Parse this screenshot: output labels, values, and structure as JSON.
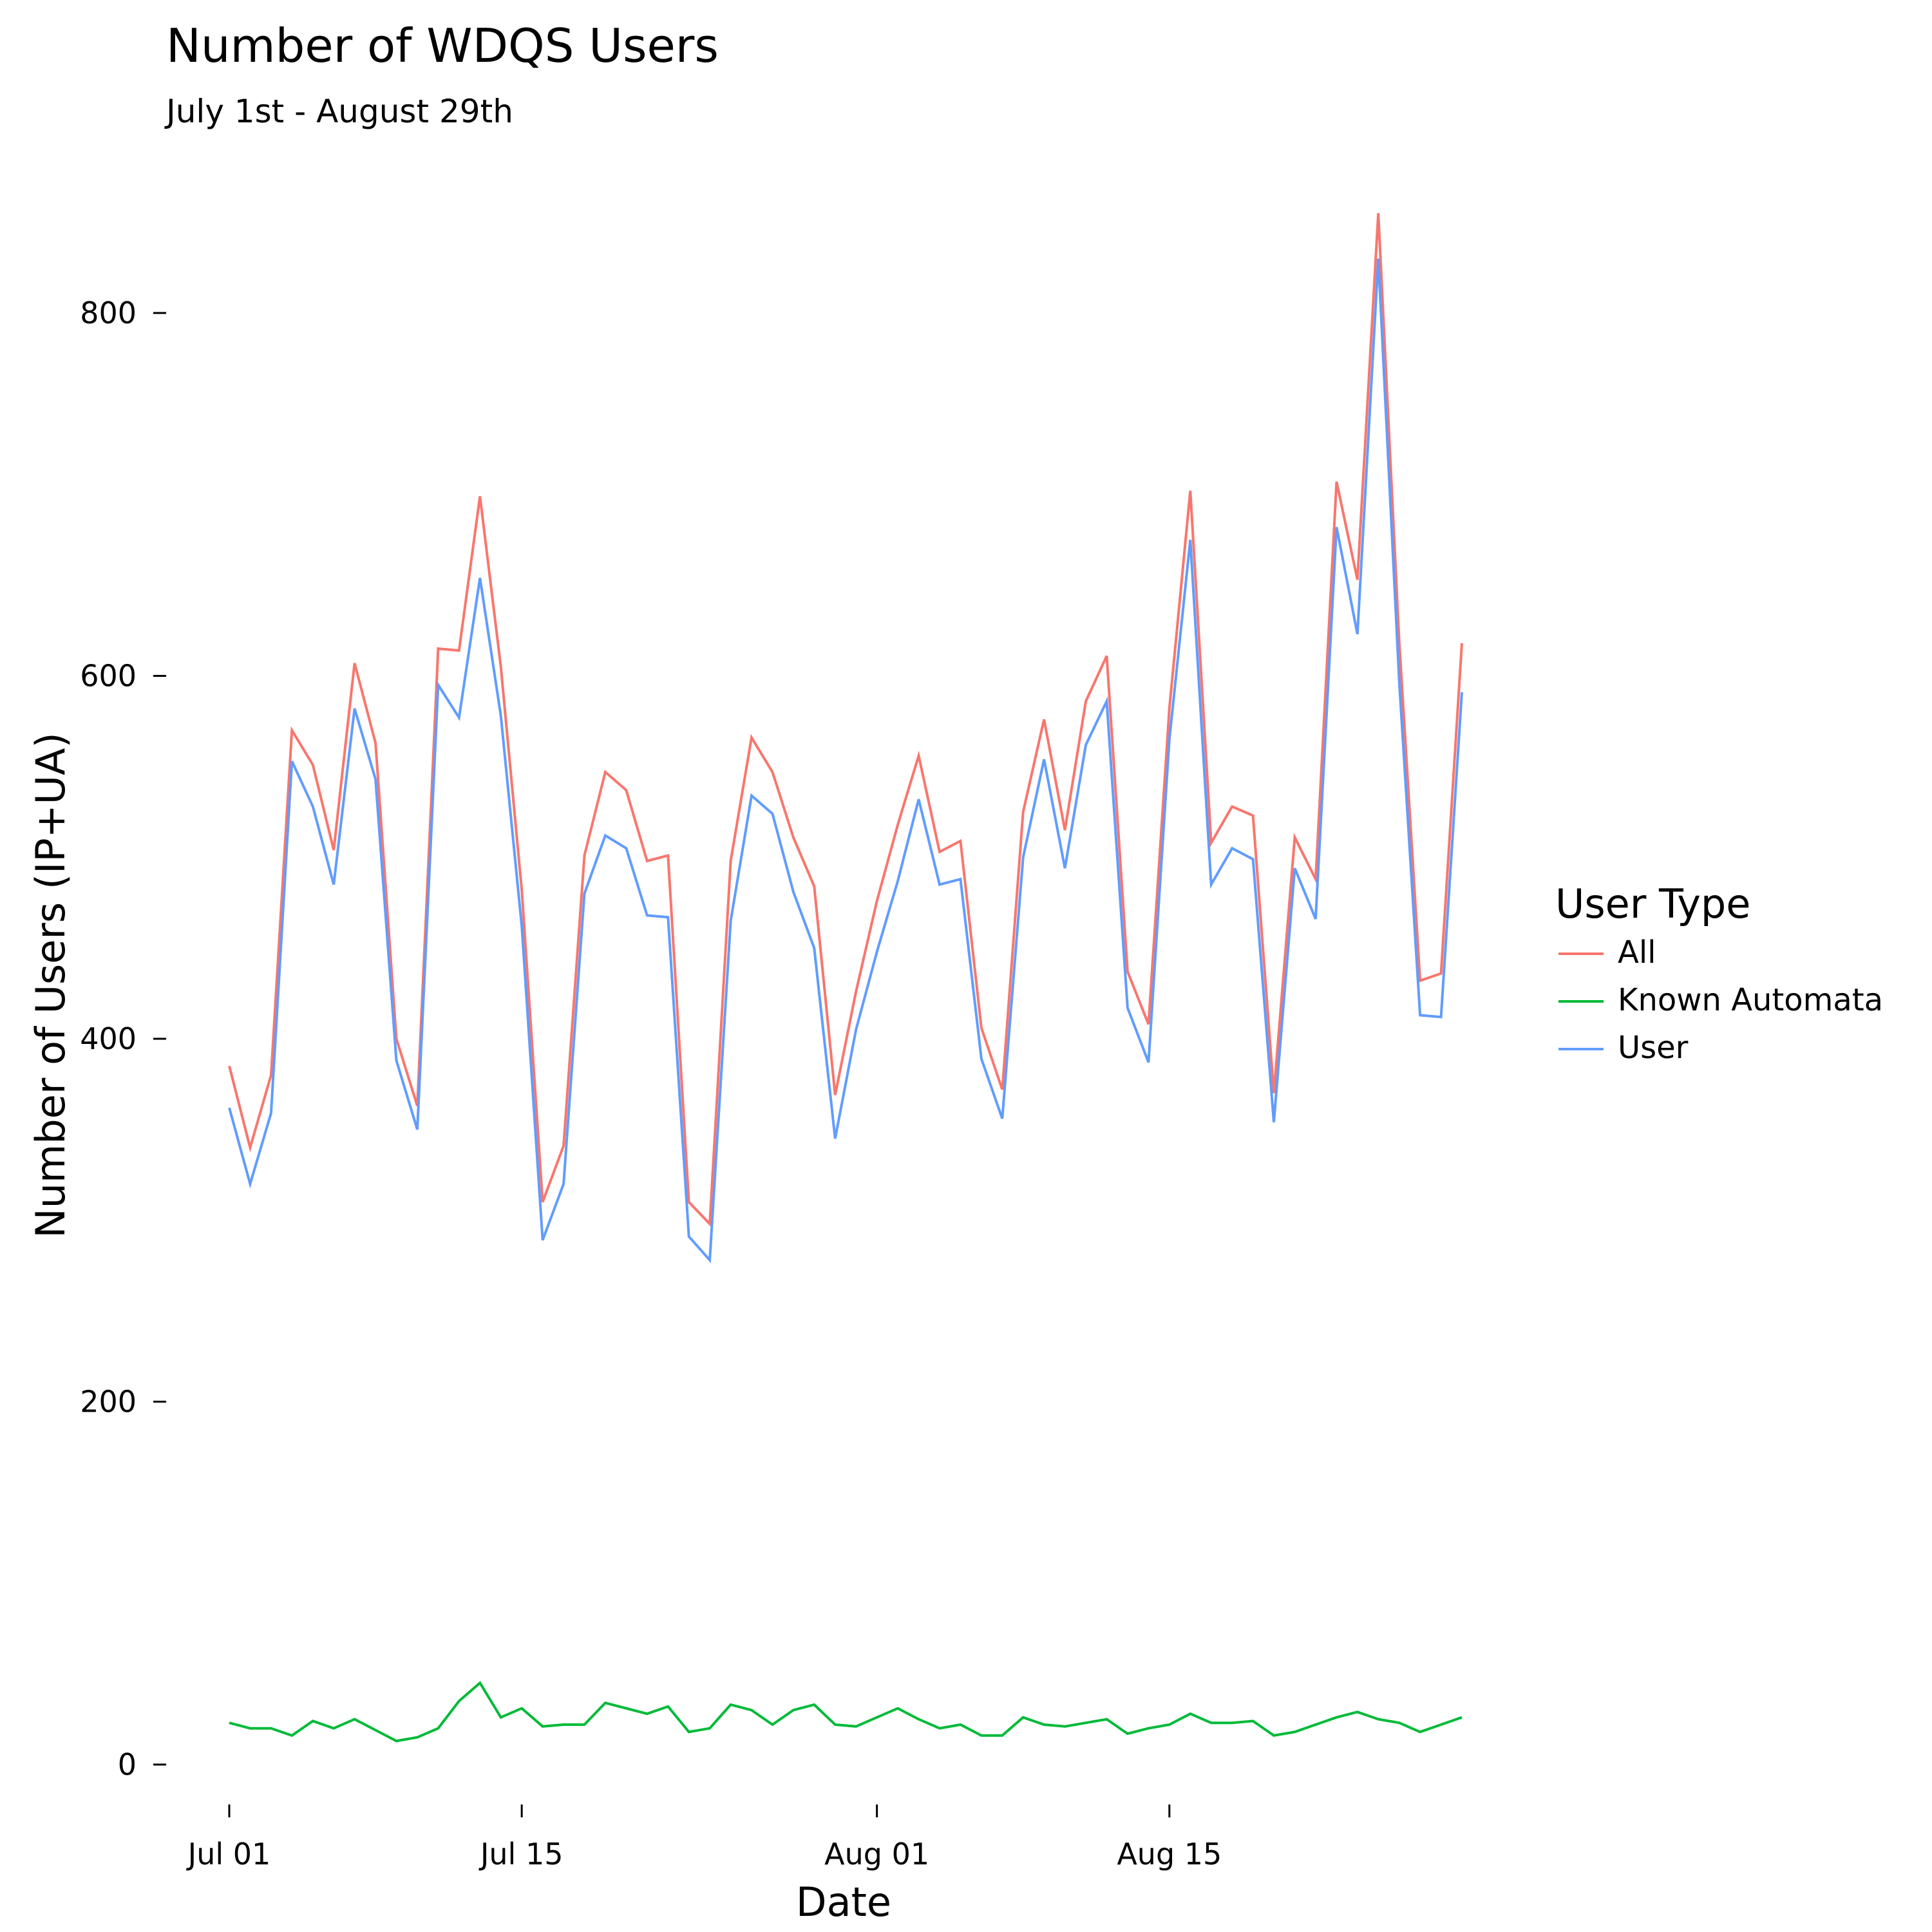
{
  "chart_data": {
    "type": "line",
    "title": "Number of WDQS Users",
    "subtitle": "July 1st - August 29th",
    "xlabel": "Date",
    "ylabel": "Number of Users (IP+UA)",
    "x_start": "2016-07-01",
    "x_end": "2016-08-29",
    "x_ticks": [
      {
        "date": "2016-07-01",
        "label": "Jul 01"
      },
      {
        "date": "2016-07-15",
        "label": "Jul 15"
      },
      {
        "date": "2016-08-01",
        "label": "Aug 01"
      },
      {
        "date": "2016-08-15",
        "label": "Aug 15"
      }
    ],
    "y_ticks": [
      0,
      200,
      400,
      600,
      800
    ],
    "ylim": [
      -30,
      860
    ],
    "grid": false,
    "legend": {
      "title": "User Type",
      "position": "right"
    },
    "series": [
      {
        "name": "All",
        "color": "#F8766D",
        "values": [
          385,
          340,
          380,
          570,
          551,
          504,
          607,
          563,
          400,
          363,
          615,
          614,
          699,
          605,
          482,
          310,
          341,
          501,
          547,
          537,
          498,
          501,
          310,
          298,
          498,
          566,
          547,
          511,
          484,
          369,
          426,
          476,
          518,
          556,
          503,
          509,
          406,
          372,
          525,
          576,
          515,
          586,
          611,
          437,
          408,
          582,
          702,
          508,
          528,
          523,
          370,
          511,
          488,
          707,
          653,
          855,
          619,
          432,
          436,
          618
        ]
      },
      {
        "name": "Known Automata",
        "color": "#00BA38",
        "values": [
          23,
          20,
          20,
          16,
          24,
          20,
          25,
          19,
          13,
          15,
          20,
          35,
          45,
          26,
          31,
          21,
          22,
          22,
          34,
          31,
          28,
          32,
          18,
          20,
          33,
          30,
          22,
          30,
          33,
          22,
          21,
          26,
          31,
          25,
          20,
          22,
          16,
          16,
          26,
          22,
          21,
          23,
          25,
          17,
          20,
          22,
          28,
          23,
          23,
          24,
          16,
          18,
          22,
          26,
          29,
          25,
          23,
          18,
          22,
          26
        ]
      },
      {
        "name": "User",
        "color": "#619CFF",
        "values": [
          362,
          320,
          359,
          553,
          528,
          485,
          582,
          543,
          388,
          350,
          595,
          577,
          654,
          578,
          462,
          289,
          320,
          480,
          512,
          505,
          468,
          467,
          291,
          278,
          465,
          534,
          524,
          481,
          450,
          345,
          405,
          448,
          487,
          532,
          485,
          488,
          389,
          356,
          500,
          554,
          494,
          562,
          586,
          417,
          387,
          565,
          675,
          485,
          505,
          499,
          354,
          494,
          466,
          682,
          623,
          830,
          597,
          413,
          412,
          591
        ]
      }
    ]
  }
}
